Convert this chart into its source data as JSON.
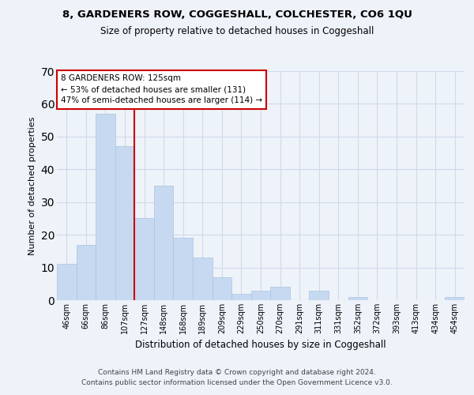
{
  "title1": "8, GARDENERS ROW, COGGESHALL, COLCHESTER, CO6 1QU",
  "title2": "Size of property relative to detached houses in Coggeshall",
  "xlabel": "Distribution of detached houses by size in Coggeshall",
  "ylabel": "Number of detached properties",
  "bar_labels": [
    "46sqm",
    "66sqm",
    "86sqm",
    "107sqm",
    "127sqm",
    "148sqm",
    "168sqm",
    "189sqm",
    "209sqm",
    "229sqm",
    "250sqm",
    "270sqm",
    "291sqm",
    "311sqm",
    "331sqm",
    "352sqm",
    "372sqm",
    "393sqm",
    "413sqm",
    "434sqm",
    "454sqm"
  ],
  "bar_values": [
    11,
    17,
    57,
    47,
    25,
    35,
    19,
    13,
    7,
    2,
    3,
    4,
    0,
    3,
    0,
    1,
    0,
    0,
    0,
    0,
    1
  ],
  "bar_color": "#c6d9f0",
  "bar_edge_color": "#a8c4e0",
  "ylim": [
    0,
    70
  ],
  "yticks": [
    0,
    10,
    20,
    30,
    40,
    50,
    60,
    70
  ],
  "vline_x_index": 3.5,
  "annotation_box_text": "8 GARDENERS ROW: 125sqm\n← 53% of detached houses are smaller (131)\n47% of semi-detached houses are larger (114) →",
  "annotation_box_color": "#ffffff",
  "annotation_box_edge_color": "#cc0000",
  "vline_color": "#cc0000",
  "footer1": "Contains HM Land Registry data © Crown copyright and database right 2024.",
  "footer2": "Contains public sector information licensed under the Open Government Licence v3.0.",
  "background_color": "#eef2f9",
  "grid_color": "#d0daea"
}
